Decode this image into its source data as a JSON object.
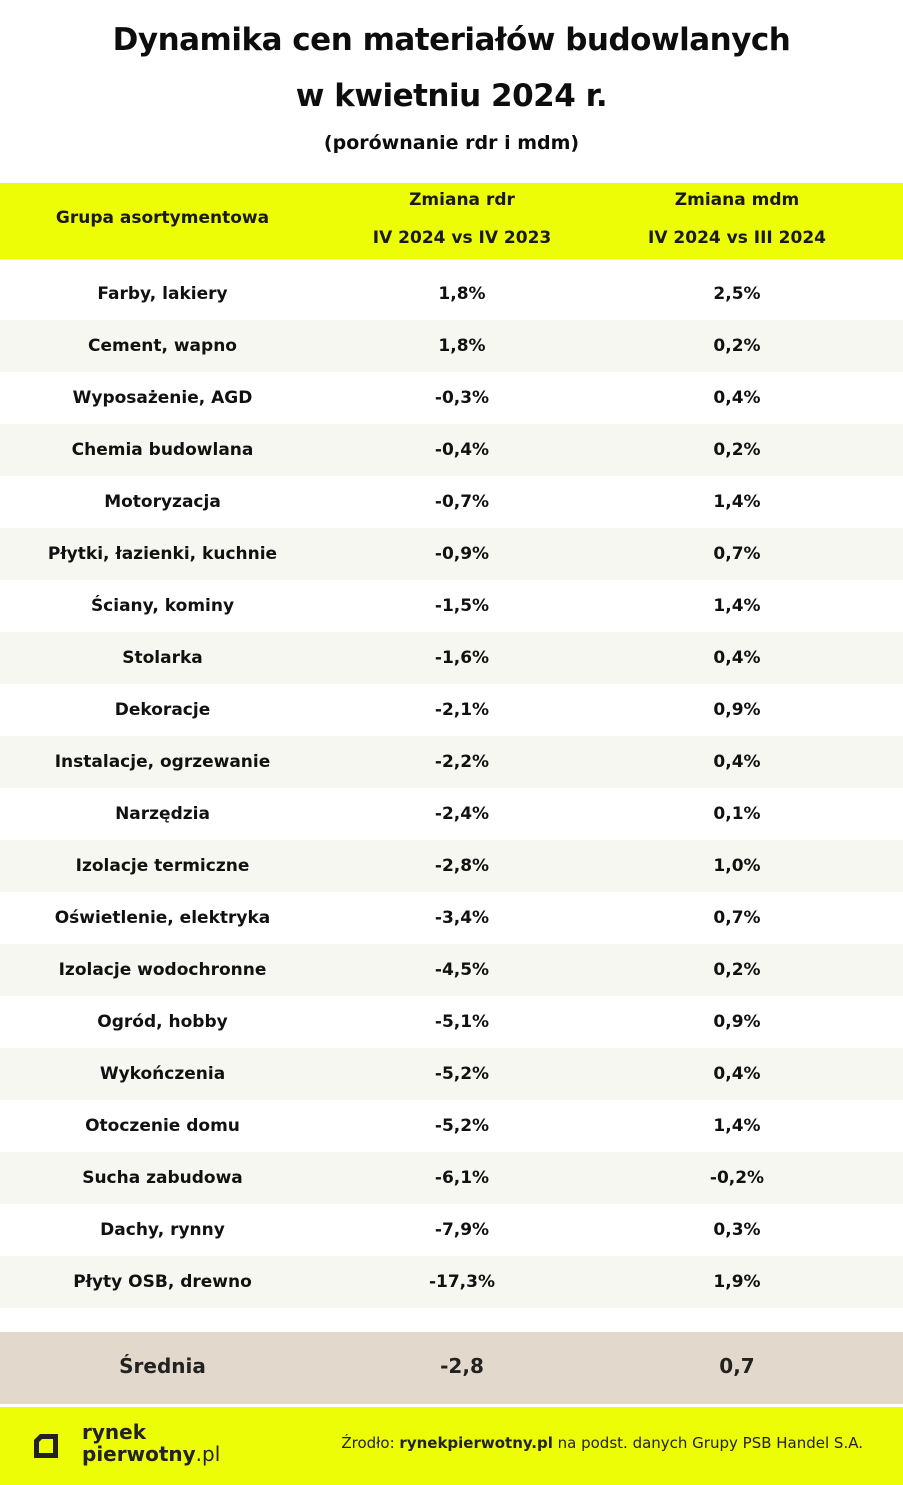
{
  "title_line1": "Dynamika cen materiałów budowlanych",
  "title_line2": "w kwietniu 2024 r.",
  "subtitle": "(porównanie  rdr i mdm)",
  "header": {
    "col1": "Grupa asortymentowa",
    "col2_line1": "Zmiana rdr",
    "col2_line2": "IV 2024 vs IV 2023",
    "col3_line1": "Zmiana mdm",
    "col3_line2": "IV 2024  vs III 2024"
  },
  "rows": [
    {
      "group": "Farby, lakiery",
      "rdr": "1,8%",
      "mdm": "2,5%"
    },
    {
      "group": "Cement, wapno",
      "rdr": "1,8%",
      "mdm": "0,2%"
    },
    {
      "group": "Wyposażenie, AGD",
      "rdr": "-0,3%",
      "mdm": "0,4%"
    },
    {
      "group": "Chemia budowlana",
      "rdr": "-0,4%",
      "mdm": "0,2%"
    },
    {
      "group": "Motoryzacja",
      "rdr": "-0,7%",
      "mdm": "1,4%"
    },
    {
      "group": "Płytki, łazienki, kuchnie",
      "rdr": "-0,9%",
      "mdm": "0,7%"
    },
    {
      "group": "Ściany, kominy",
      "rdr": "-1,5%",
      "mdm": "1,4%"
    },
    {
      "group": "Stolarka",
      "rdr": "-1,6%",
      "mdm": "0,4%"
    },
    {
      "group": "Dekoracje",
      "rdr": "-2,1%",
      "mdm": "0,9%"
    },
    {
      "group": "Instalacje, ogrzewanie",
      "rdr": "-2,2%",
      "mdm": "0,4%"
    },
    {
      "group": "Narzędzia",
      "rdr": "-2,4%",
      "mdm": "0,1%"
    },
    {
      "group": "Izolacje termiczne",
      "rdr": "-2,8%",
      "mdm": "1,0%"
    },
    {
      "group": "Oświetlenie, elektryka",
      "rdr": "-3,4%",
      "mdm": "0,7%"
    },
    {
      "group": "Izolacje wodochronne",
      "rdr": "-4,5%",
      "mdm": "0,2%"
    },
    {
      "group": "Ogród, hobby",
      "rdr": "-5,1%",
      "mdm": "0,9%"
    },
    {
      "group": "Wykończenia",
      "rdr": "-5,2%",
      "mdm": "0,4%"
    },
    {
      "group": "Otoczenie domu",
      "rdr": "-5,2%",
      "mdm": "1,4%"
    },
    {
      "group": "Sucha zabudowa",
      "rdr": "-6,1%",
      "mdm": "-0,2%"
    },
    {
      "group": "Dachy, rynny",
      "rdr": "-7,9%",
      "mdm": "0,3%"
    },
    {
      "group": "Płyty OSB, drewno",
      "rdr": "-17,3%",
      "mdm": "1,9%"
    }
  ],
  "average": {
    "label": "Średnia",
    "rdr": "-2,8",
    "mdm": "0,7"
  },
  "footer": {
    "logo_line1": "rynek",
    "logo_line2_bold": "pierwotny",
    "logo_line2_thin": ".pl",
    "source_prefix": "Źrodło: ",
    "source_bold": "rynekpierwotny.pl",
    "source_suffix": " na podst. danych Grupy PSB Handel S.A."
  },
  "colors": {
    "accent": "#ecfd05",
    "average_bg": "#e3d8cc",
    "row_shade": "#f7f7f2"
  },
  "chart_data": {
    "type": "table",
    "title": "Dynamika cen materiałów budowlanych w kwietniu 2024 r.",
    "subtitle": "(porównanie  rdr i mdm)",
    "columns": [
      "Grupa asortymentowa",
      "Zmiana rdr IV 2024 vs IV 2023",
      "Zmiana mdm IV 2024  vs III 2024"
    ],
    "categories": [
      "Farby, lakiery",
      "Cement, wapno",
      "Wyposażenie, AGD",
      "Chemia budowlana",
      "Motoryzacja",
      "Płytki, łazienki, kuchnie",
      "Ściany, kominy",
      "Stolarka",
      "Dekoracje",
      "Instalacje, ogrzewanie",
      "Narzędzia",
      "Izolacje termiczne",
      "Oświetlenie, elektryka",
      "Izolacje wodochronne",
      "Ogród, hobby",
      "Wykończenia",
      "Otoczenie domu",
      "Sucha zabudowa",
      "Dachy, rynny",
      "Płyty OSB, drewno"
    ],
    "series": [
      {
        "name": "Zmiana rdr",
        "values": [
          1.8,
          1.8,
          -0.3,
          -0.4,
          -0.7,
          -0.9,
          -1.5,
          -1.6,
          -2.1,
          -2.2,
          -2.4,
          -2.8,
          -3.4,
          -4.5,
          -5.1,
          -5.2,
          -5.2,
          -6.1,
          -7.9,
          -17.3
        ]
      },
      {
        "name": "Zmiana mdm",
        "values": [
          2.5,
          0.2,
          0.4,
          0.2,
          1.4,
          0.7,
          1.4,
          0.4,
          0.9,
          0.4,
          0.1,
          1.0,
          0.7,
          0.2,
          0.9,
          0.4,
          1.4,
          -0.2,
          0.3,
          1.9
        ]
      }
    ],
    "average": {
      "Zmiana rdr": -2.8,
      "Zmiana mdm": 0.7
    }
  }
}
